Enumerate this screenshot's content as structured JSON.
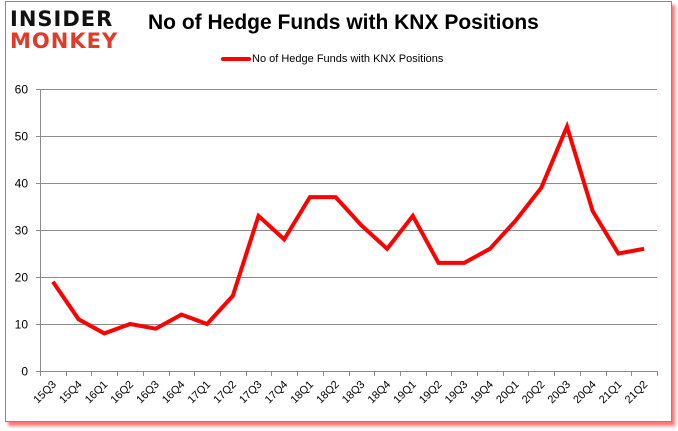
{
  "logo": {
    "line1": "INSIDER",
    "line2": "MONKEY"
  },
  "header": {
    "title": "No of Hedge Funds with KNX Positions"
  },
  "legend": {
    "label": "No of Hedge Funds with KNX Positions",
    "color": "#ff0000"
  },
  "chart_data": {
    "type": "line",
    "title": "No of Hedge Funds with KNX Positions",
    "xlabel": "",
    "ylabel": "",
    "ylim": [
      0,
      60
    ],
    "yticks": [
      0,
      10,
      20,
      30,
      40,
      50,
      60
    ],
    "grid": true,
    "legend_position": "top",
    "categories": [
      "15Q3",
      "15Q4",
      "16Q1",
      "16Q2",
      "16Q3",
      "16Q4",
      "17Q1",
      "17Q2",
      "17Q3",
      "17Q4",
      "18Q1",
      "18Q2",
      "18Q3",
      "18Q4",
      "19Q1",
      "19Q2",
      "19Q3",
      "19Q4",
      "20Q1",
      "20Q2",
      "20Q3",
      "20Q4",
      "21Q1",
      "21Q2"
    ],
    "series": [
      {
        "name": "No of Hedge Funds with KNX Positions",
        "color": "#ff0000",
        "values": [
          19,
          11,
          8,
          10,
          9,
          12,
          10,
          16,
          33,
          28,
          37,
          37,
          31,
          26,
          33,
          23,
          23,
          26,
          32,
          39,
          52,
          34,
          25,
          26
        ]
      }
    ]
  }
}
